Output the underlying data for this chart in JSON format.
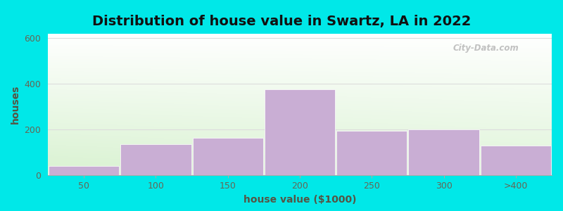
{
  "title": "Distribution of house value in Swartz, LA in 2022",
  "xlabel": "house value ($1000)",
  "ylabel": "houses",
  "background_outer": "#00e8e8",
  "bar_color": "#c9aed4",
  "bar_edge_color": "#c9aed4",
  "categories": [
    "50",
    "100",
    "150",
    "200",
    "250",
    "300",
    ">400"
  ],
  "values": [
    40,
    135,
    165,
    375,
    195,
    200,
    130
  ],
  "ylim": [
    0,
    620
  ],
  "yticks": [
    0,
    200,
    400,
    600
  ],
  "bar_width": 0.98,
  "title_fontsize": 14,
  "label_fontsize": 10,
  "tick_fontsize": 9,
  "tick_color": "#666655",
  "label_color": "#555544",
  "title_color": "#111111",
  "watermark": "City-Data.com",
  "grid_color": "#dddddd",
  "plot_bg_color_bottom": "#d8edcc",
  "plot_bg_color_top": "#f5fff5"
}
